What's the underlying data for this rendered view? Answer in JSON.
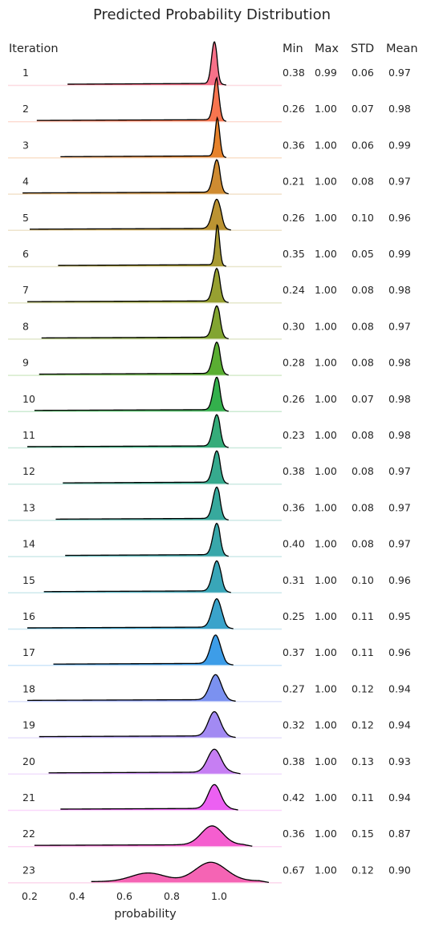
{
  "chart_data": {
    "type": "area",
    "title": "Predicted Probability Distribution",
    "xlabel": "probability",
    "ylabel": "",
    "xlim": [
      0.1,
      1.2
    ],
    "xticks": [
      0.2,
      0.4,
      0.6,
      0.8,
      1.0
    ],
    "xtick_labels": [
      "0.2",
      "0.4",
      "0.6",
      "0.8",
      "1.0"
    ],
    "row_header": "Iteration",
    "stat_headers": [
      "Min",
      "Max",
      "STD",
      "Mean"
    ],
    "rows": [
      {
        "iteration": "1",
        "min": "0.38",
        "max": "0.99",
        "std": "0.06",
        "mean": "0.97",
        "color": "#f77189",
        "ridge": {
          "start": 0.36,
          "end": 1.03
        },
        "peak": {
          "x": 0.98,
          "height": 1.0,
          "width": 0.012
        }
      },
      {
        "iteration": "2",
        "min": "0.26",
        "max": "1.00",
        "std": "0.07",
        "mean": "0.98",
        "color": "#f7754f",
        "ridge": {
          "start": 0.23,
          "end": 1.03
        },
        "peak": {
          "x": 0.99,
          "height": 1.0,
          "width": 0.013
        }
      },
      {
        "iteration": "3",
        "min": "0.36",
        "max": "1.00",
        "std": "0.06",
        "mean": "0.99",
        "color": "#e6822b",
        "ridge": {
          "start": 0.33,
          "end": 1.03
        },
        "peak": {
          "x": 0.995,
          "height": 1.0,
          "width": 0.011
        }
      },
      {
        "iteration": "4",
        "min": "0.21",
        "max": "1.00",
        "std": "0.08",
        "mean": "0.97",
        "color": "#cf8b31",
        "ridge": {
          "start": 0.17,
          "end": 1.04
        },
        "peak": {
          "x": 0.99,
          "height": 0.78,
          "width": 0.015
        }
      },
      {
        "iteration": "5",
        "min": "0.26",
        "max": "1.00",
        "std": "0.10",
        "mean": "0.96",
        "color": "#bb9332",
        "ridge": {
          "start": 0.2,
          "end": 1.05
        },
        "peak": {
          "x": 0.99,
          "height": 0.7,
          "width": 0.018
        }
      },
      {
        "iteration": "6",
        "min": "0.35",
        "max": "1.00",
        "std": "0.05",
        "mean": "0.99",
        "color": "#a89a32",
        "ridge": {
          "start": 0.32,
          "end": 1.03
        },
        "peak": {
          "x": 0.995,
          "height": 1.05,
          "width": 0.01
        }
      },
      {
        "iteration": "7",
        "min": "0.24",
        "max": "1.00",
        "std": "0.08",
        "mean": "0.98",
        "color": "#97a031",
        "ridge": {
          "start": 0.19,
          "end": 1.04
        },
        "peak": {
          "x": 0.99,
          "height": 0.78,
          "width": 0.015
        }
      },
      {
        "iteration": "8",
        "min": "0.30",
        "max": "1.00",
        "std": "0.08",
        "mean": "0.97",
        "color": "#82a531",
        "ridge": {
          "start": 0.25,
          "end": 1.04
        },
        "peak": {
          "x": 0.99,
          "height": 0.75,
          "width": 0.016
        }
      },
      {
        "iteration": "9",
        "min": "0.28",
        "max": "1.00",
        "std": "0.08",
        "mean": "0.98",
        "color": "#5aae32",
        "ridge": {
          "start": 0.24,
          "end": 1.04
        },
        "peak": {
          "x": 0.99,
          "height": 0.75,
          "width": 0.016
        }
      },
      {
        "iteration": "10",
        "min": "0.26",
        "max": "1.00",
        "std": "0.07",
        "mean": "0.98",
        "color": "#33b04c",
        "ridge": {
          "start": 0.22,
          "end": 1.04
        },
        "peak": {
          "x": 0.99,
          "height": 0.78,
          "width": 0.015
        }
      },
      {
        "iteration": "11",
        "min": "0.23",
        "max": "1.00",
        "std": "0.08",
        "mean": "0.98",
        "color": "#35ac7a",
        "ridge": {
          "start": 0.19,
          "end": 1.04
        },
        "peak": {
          "x": 0.99,
          "height": 0.75,
          "width": 0.016
        }
      },
      {
        "iteration": "12",
        "min": "0.38",
        "max": "1.00",
        "std": "0.08",
        "mean": "0.97",
        "color": "#36aa8e",
        "ridge": {
          "start": 0.34,
          "end": 1.04
        },
        "peak": {
          "x": 0.99,
          "height": 0.75,
          "width": 0.016
        }
      },
      {
        "iteration": "13",
        "min": "0.36",
        "max": "1.00",
        "std": "0.08",
        "mean": "0.97",
        "color": "#37a99d",
        "ridge": {
          "start": 0.31,
          "end": 1.04
        },
        "peak": {
          "x": 0.99,
          "height": 0.75,
          "width": 0.016
        }
      },
      {
        "iteration": "14",
        "min": "0.40",
        "max": "1.00",
        "std": "0.08",
        "mean": "0.97",
        "color": "#38a7aa",
        "ridge": {
          "start": 0.35,
          "end": 1.04
        },
        "peak": {
          "x": 0.99,
          "height": 0.75,
          "width": 0.016
        }
      },
      {
        "iteration": "15",
        "min": "0.31",
        "max": "1.00",
        "std": "0.10",
        "mean": "0.96",
        "color": "#39a6b8",
        "ridge": {
          "start": 0.26,
          "end": 1.05
        },
        "peak": {
          "x": 0.99,
          "height": 0.72,
          "width": 0.018
        }
      },
      {
        "iteration": "16",
        "min": "0.25",
        "max": "1.00",
        "std": "0.11",
        "mean": "0.95",
        "color": "#3aa3cb",
        "ridge": {
          "start": 0.19,
          "end": 1.06
        },
        "peak": {
          "x": 0.99,
          "height": 0.68,
          "width": 0.02
        }
      },
      {
        "iteration": "17",
        "min": "0.37",
        "max": "1.00",
        "std": "0.11",
        "mean": "0.96",
        "color": "#3d9de8",
        "ridge": {
          "start": 0.3,
          "end": 1.06
        },
        "peak": {
          "x": 0.985,
          "height": 0.68,
          "width": 0.021
        }
      },
      {
        "iteration": "18",
        "min": "0.27",
        "max": "1.00",
        "std": "0.12",
        "mean": "0.94",
        "color": "#7b91f0",
        "ridge": {
          "start": 0.19,
          "end": 1.07
        },
        "peak": {
          "x": 0.985,
          "height": 0.6,
          "width": 0.024
        }
      },
      {
        "iteration": "19",
        "min": "0.32",
        "max": "1.00",
        "std": "0.12",
        "mean": "0.94",
        "color": "#a28af3",
        "ridge": {
          "start": 0.24,
          "end": 1.07
        },
        "peak": {
          "x": 0.98,
          "height": 0.58,
          "width": 0.025
        }
      },
      {
        "iteration": "20",
        "min": "0.38",
        "max": "1.00",
        "std": "0.13",
        "mean": "0.93",
        "color": "#c67ef3",
        "ridge": {
          "start": 0.28,
          "end": 1.09
        },
        "peak": {
          "x": 0.98,
          "height": 0.55,
          "width": 0.028
        }
      },
      {
        "iteration": "21",
        "min": "0.42",
        "max": "1.00",
        "std": "0.11",
        "mean": "0.94",
        "color": "#ec60f2",
        "ridge": {
          "start": 0.33,
          "end": 1.08
        },
        "peak": {
          "x": 0.98,
          "height": 0.57,
          "width": 0.026
        }
      },
      {
        "iteration": "22",
        "min": "0.36",
        "max": "1.00",
        "std": "0.15",
        "mean": "0.87",
        "color": "#f55ecf",
        "ridge": {
          "start": 0.22,
          "end": 1.14
        },
        "peak": {
          "x": 0.97,
          "height": 0.45,
          "width": 0.045
        }
      },
      {
        "iteration": "23",
        "min": "0.67",
        "max": "1.00",
        "std": "0.12",
        "mean": "0.90",
        "color": "#f564b4",
        "ridge": {
          "start": 0.46,
          "end": 1.21
        },
        "peak": {
          "x": 0.965,
          "height": 0.45,
          "width": 0.065
        },
        "secondary": {
          "x": 0.7,
          "height": 0.2,
          "width": 0.07
        }
      }
    ]
  }
}
